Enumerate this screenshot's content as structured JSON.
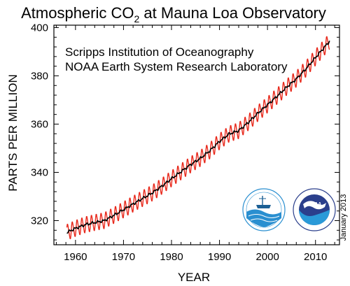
{
  "chart_data": {
    "type": "line",
    "title_main": "Atmospheric CO",
    "title_sub": "2",
    "title_rest": " at Mauna Loa Observatory",
    "annotations": [
      "Scripps Institution of Oceanography",
      "NOAA Earth System Research Laboratory"
    ],
    "xlabel": "YEAR",
    "ylabel": "PARTS PER MILLION",
    "date_note": "January 2013",
    "xlim": [
      1955.5,
      2015
    ],
    "ylim": [
      310,
      401
    ],
    "xticks": [
      1960,
      1970,
      1980,
      1990,
      2000,
      2010
    ],
    "yticks": [
      320,
      340,
      360,
      380,
      400
    ],
    "seasonal_amplitude_ppm": 3.2,
    "series": [
      {
        "color": "#e8291c",
        "style": "seasonal monthly",
        "x": [
          1958.2,
          2013.0
        ]
      },
      {
        "color": "#000000",
        "style": "trend",
        "x": [
          1958.2,
          1960,
          1962,
          1964,
          1966,
          1968,
          1970,
          1972,
          1974,
          1976,
          1978,
          1980,
          1982,
          1984,
          1986,
          1988,
          1990,
          1992,
          1994,
          1996,
          1998,
          2000,
          2002,
          2004,
          2006,
          2008,
          2010,
          2012,
          2013
        ],
        "y": [
          315.1,
          316.8,
          318.3,
          319.2,
          320.0,
          322.2,
          324.5,
          326.9,
          329.2,
          331.5,
          334.3,
          337.4,
          340.3,
          343.2,
          345.8,
          349.0,
          352.8,
          355.9,
          357.3,
          360.7,
          364.5,
          368.0,
          371.6,
          375.3,
          378.7,
          382.9,
          387.6,
          392.2,
          394.5
        ]
      }
    ]
  },
  "logos": [
    {
      "name": "scripps-seal",
      "color": "#2a8fd0"
    },
    {
      "name": "noaa-seal",
      "color": "#2b3f8c"
    }
  ]
}
